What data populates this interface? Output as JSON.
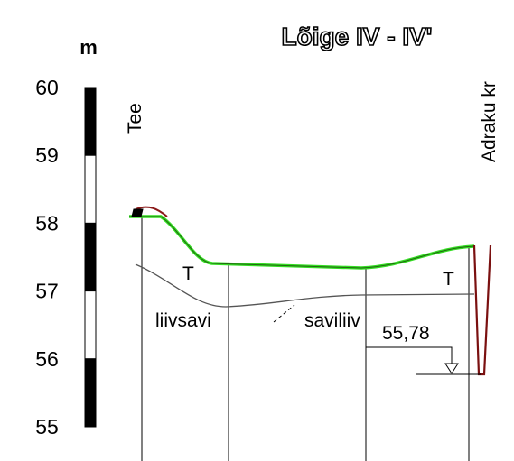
{
  "header": {
    "unit": "m",
    "title": "Lõige IV - IV'"
  },
  "scale": {
    "labels": [
      60,
      59,
      58,
      57,
      56,
      55
    ]
  },
  "annotations": {
    "left": "Tee",
    "right": "Adraku kr",
    "fill_left": "T",
    "fill_right": "T",
    "layer_left": "liivsavi",
    "layer_right": "saviliiv",
    "water_level": "55,78"
  }
}
